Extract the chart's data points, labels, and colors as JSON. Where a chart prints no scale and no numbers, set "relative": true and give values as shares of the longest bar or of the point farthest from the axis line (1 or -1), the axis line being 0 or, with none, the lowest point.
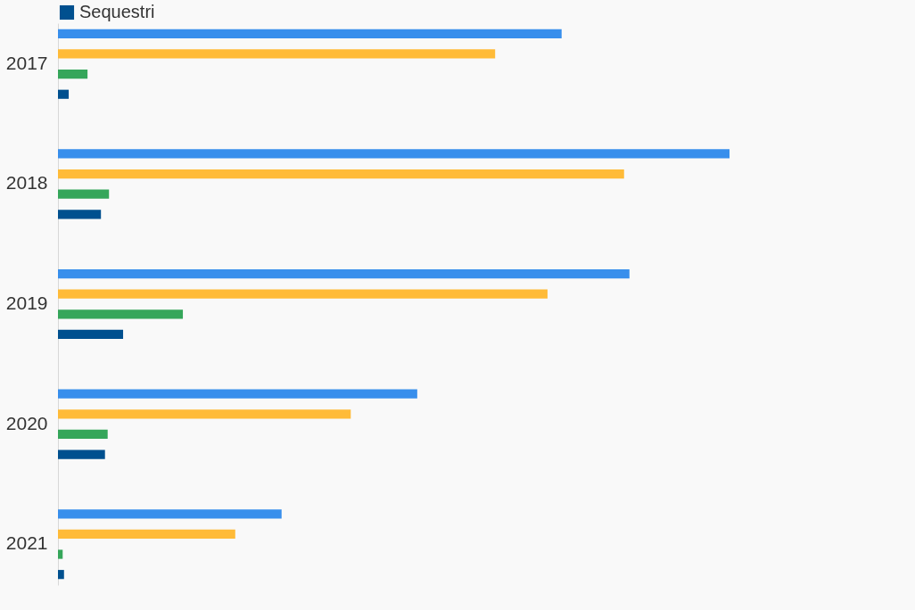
{
  "chart_data": {
    "type": "bar",
    "orientation": "horizontal",
    "relative": true,
    "legend": "top left",
    "categories": [
      "2017",
      "2018",
      "2019",
      "2020",
      "2021"
    ],
    "series": [
      {
        "color": "#388fec",
        "values": [
          0.75,
          1,
          0.851,
          0.535,
          0.333
        ]
      },
      {
        "color": "#ffbb38",
        "values": [
          0.651,
          0.843,
          0.729,
          0.436,
          0.264
        ]
      },
      {
        "color": "#35a65a",
        "values": [
          0.044,
          0.076,
          0.186,
          0.074,
          0.007
        ]
      },
      {
        "name": "Sequestri",
        "color": "#00508f",
        "values": [
          0.016,
          0.064,
          0.097,
          0.07,
          0.009
        ]
      }
    ]
  }
}
